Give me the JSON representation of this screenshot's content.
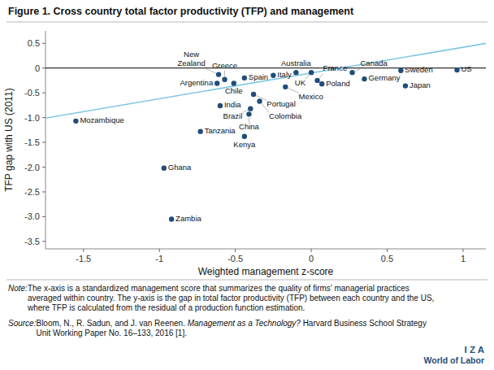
{
  "chart_data": {
    "type": "scatter",
    "title": "Figure 1. Cross country total factor productivity (TFP) and management",
    "xlabel": "Weighted management z-score",
    "ylabel": "TFP gap with US (2011)",
    "xlim": [
      -1.75,
      1.15
    ],
    "ylim": [
      -3.65,
      0.75
    ],
    "xticks": [
      -1.5,
      -1,
      -0.5,
      0,
      0.5,
      1
    ],
    "yticks": [
      0.5,
      0,
      -0.5,
      {
        "value": -1,
        "label": "-1.0"
      },
      -1.5,
      {
        "value": -2,
        "label": "-2.0"
      },
      -2.5,
      {
        "value": -3,
        "label": "-3.0"
      },
      -3.5
    ],
    "grid": false,
    "series": [
      {
        "type": "scatter",
        "color": "#1F4E79",
        "x": [
          -1.55,
          -0.73,
          -0.97,
          -0.92,
          -0.44,
          -0.6,
          -0.62,
          -0.57,
          -0.61,
          -0.51,
          -0.44,
          -0.38,
          -0.34,
          -0.4,
          -0.41,
          -0.25,
          -0.17,
          -0.1,
          0,
          0.04,
          0.07,
          0.27,
          0.35,
          0.59,
          0.62,
          0.96
        ],
        "values": [
          -1.07,
          -1.28,
          -2.02,
          -3.05,
          -1.38,
          -0.76,
          -0.31,
          -0.23,
          -0.13,
          -0.31,
          -0.2,
          -0.53,
          -0.67,
          -0.82,
          -0.93,
          -0.15,
          -0.38,
          -0.09,
          -0.09,
          -0.25,
          -0.32,
          -0.09,
          -0.22,
          -0.05,
          -0.36,
          -0.04
        ],
        "labels": [
          "Mozambique",
          "Tanzania",
          "Ghana",
          "Zambia",
          "Kenya",
          "India",
          "Argentina",
          "Greece",
          "New\nZealand",
          "Chile",
          "Spain",
          "Portugal",
          "Colombia",
          "Brazil",
          "China",
          "Italy",
          "Mexico",
          "Australia",
          "UK",
          "France",
          "Poland",
          "Canada",
          "Germany",
          "Sweden",
          "Japan",
          "US"
        ]
      },
      {
        "type": "line",
        "color": "#7EC8E3",
        "x": [
          -1.75,
          1.15
        ],
        "values": [
          -1.01,
          0.498
        ]
      }
    ],
    "note_label": "Note:",
    "note": " The x-axis is a standardized management score that summarizes the quality of firms’ managerial practices\naveraged within country. The y-axis is the gap in total factor productivity (TFP) between each country and the US,\nwhere TFP is calculated from the residual of a production function estimation.",
    "source_label": "Source:",
    "source": " Bloom, N., R. Sadun, and J. van Reenen. ",
    "source_italic": "Management as a Technology?",
    "source_tail": " Harvard Business School Strategy\nUnit Working Paper No. 16–133, 2016 [1].",
    "logo": [
      "I Z A",
      "World of Labor"
    ]
  }
}
